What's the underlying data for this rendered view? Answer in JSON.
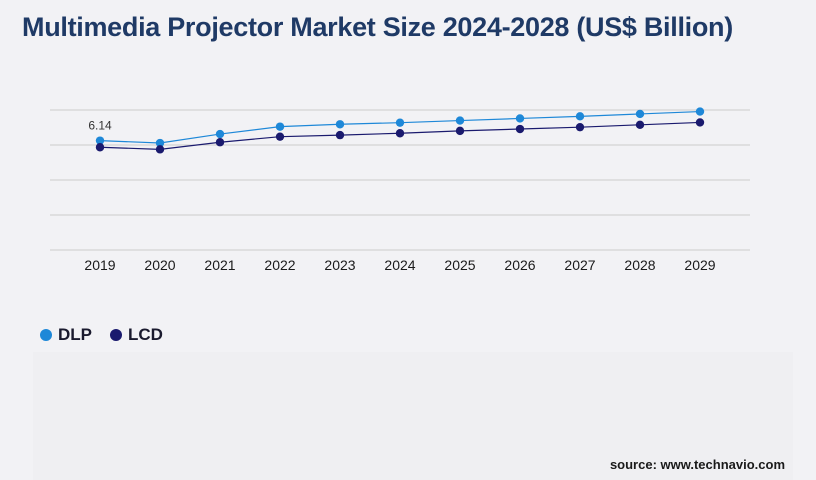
{
  "title": "Multimedia Projector Market Size 2024-2028 (US$ Billion)",
  "source": "source: www.technavio.com",
  "colors": {
    "dlp": "#1e88d8",
    "lcd": "#1a1a6e",
    "title": "#1f3a66",
    "grid": "#cccccc"
  },
  "chart_data": {
    "type": "line",
    "title": "Multimedia Projector Market Size 2024-2028 (US$ Billion)",
    "categories": [
      "2019",
      "2020",
      "2021",
      "2022",
      "2023",
      "2024",
      "2025",
      "2026",
      "2027",
      "2028",
      "2029"
    ],
    "series": [
      {
        "name": "DLP",
        "values": [
          6.14,
          6.05,
          6.39,
          6.67,
          6.76,
          6.82,
          6.9,
          6.98,
          7.06,
          7.15,
          7.24
        ]
      },
      {
        "name": "LCD",
        "values": [
          5.89,
          5.81,
          6.08,
          6.29,
          6.35,
          6.42,
          6.51,
          6.58,
          6.65,
          6.74,
          6.83
        ]
      }
    ],
    "data_labels": [
      {
        "series": "DLP",
        "category": "2019",
        "text": "6.14"
      }
    ],
    "ylim": [
      2.0,
      7.3
    ],
    "grid": true,
    "legend": "bottom-left"
  }
}
